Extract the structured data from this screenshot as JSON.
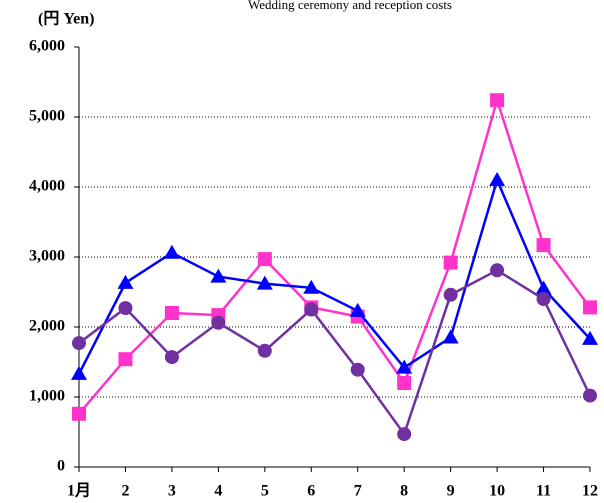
{
  "chart_data": {
    "type": "line",
    "title": "Wedding ceremony and reception costs",
    "y_label": "(円  Yen)",
    "categories": [
      "1月",
      "2",
      "3",
      "4",
      "5",
      "6",
      "7",
      "8",
      "9",
      "10",
      "11",
      "12"
    ],
    "series": [
      {
        "color": "#ff33cc",
        "marker": "square",
        "values": [
          760,
          1540,
          2200,
          2170,
          2970,
          2280,
          2150,
          1200,
          2920,
          5240,
          3170,
          2280
        ]
      },
      {
        "color": "#0000ff",
        "marker": "triangle",
        "values": [
          1330,
          2630,
          3060,
          2720,
          2620,
          2560,
          2230,
          1420,
          1850,
          4100,
          2550,
          1830
        ]
      },
      {
        "color": "#7030a0",
        "marker": "circle",
        "values": [
          1770,
          2270,
          1570,
          2060,
          1660,
          2250,
          1390,
          470,
          2460,
          2810,
          2400,
          1020
        ]
      }
    ],
    "ylim": [
      0,
      6000
    ],
    "yticks": [
      0,
      {
        "value": 1000,
        "label": "1,000"
      },
      {
        "value": 2000,
        "label": "2,000"
      },
      {
        "value": 3000,
        "label": "3,000"
      },
      {
        "value": 4000,
        "label": "4,000"
      },
      {
        "value": 5000,
        "label": "5,000"
      },
      {
        "value": 6000,
        "label": "6,000"
      }
    ],
    "grid": true
  }
}
